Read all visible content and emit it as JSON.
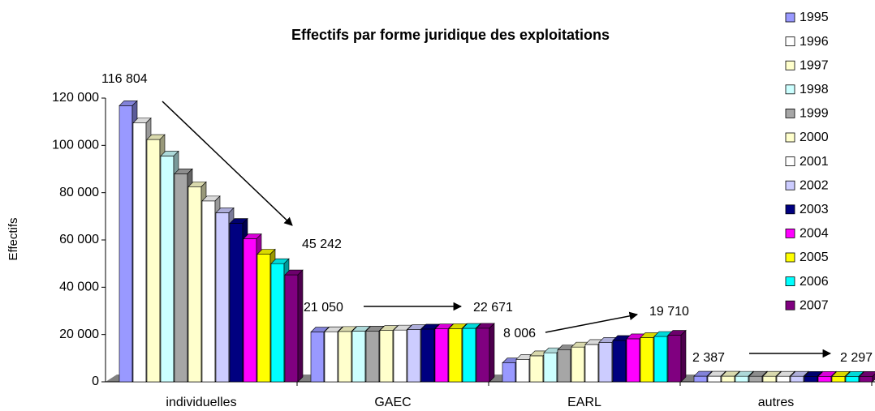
{
  "chart_data": {
    "type": "bar3d",
    "title": "Effectifs par forme juridique des exploitations",
    "y_label": "Effectifs",
    "categories": [
      "individuelles",
      "GAEC",
      "EARL",
      "autres"
    ],
    "ylim": [
      0,
      120000
    ],
    "yticks": [
      {
        "value": 0,
        "label": "0"
      },
      {
        "value": 20000,
        "label": "20 000"
      },
      {
        "value": 40000,
        "label": "40 000"
      },
      {
        "value": 60000,
        "label": "60 000"
      },
      {
        "value": 80000,
        "label": "80 000"
      },
      {
        "value": 100000,
        "label": "100 000"
      },
      {
        "value": 120000,
        "label": "120 000"
      }
    ],
    "legend": "right",
    "series": [
      {
        "name": "1995",
        "color": "#9999ff",
        "values": [
          116804,
          21050,
          8006,
          2387
        ],
        "value_labels": [
          "116 804",
          "21 050",
          "8 006",
          "2 387"
        ]
      },
      {
        "name": "1996",
        "color": "#ffffff",
        "values": [
          109500,
          21200,
          9500,
          2380
        ]
      },
      {
        "name": "1997",
        "color": "#ffffcc",
        "values": [
          102500,
          21300,
          11000,
          2370
        ]
      },
      {
        "name": "1998",
        "color": "#ccffff",
        "values": [
          95500,
          21400,
          12300,
          2360
        ]
      },
      {
        "name": "1999",
        "color": "#a6a6a6",
        "values": [
          88000,
          21500,
          13500,
          2350
        ]
      },
      {
        "name": "2000",
        "color": "#ffffcc",
        "values": [
          82500,
          21700,
          14700,
          2340
        ]
      },
      {
        "name": "2001",
        "color": "#ffffff",
        "values": [
          76500,
          21900,
          15800,
          2330
        ]
      },
      {
        "name": "2002",
        "color": "#ccccff",
        "values": [
          71500,
          22100,
          16700,
          2320
        ]
      },
      {
        "name": "2003",
        "color": "#000080",
        "values": [
          67000,
          22300,
          17500,
          2310
        ]
      },
      {
        "name": "2004",
        "color": "#ff00ff",
        "values": [
          60500,
          22400,
          18200,
          2300
        ]
      },
      {
        "name": "2005",
        "color": "#ffff00",
        "values": [
          54000,
          22500,
          18700,
          2300
        ]
      },
      {
        "name": "2006",
        "color": "#00ffff",
        "values": [
          50000,
          22600,
          19200,
          2300
        ]
      },
      {
        "name": "2007",
        "color": "#800080",
        "values": [
          45242,
          22671,
          19710,
          2297
        ],
        "value_labels": [
          "45 242",
          "22 671",
          "19 710",
          "2 297"
        ]
      }
    ]
  }
}
